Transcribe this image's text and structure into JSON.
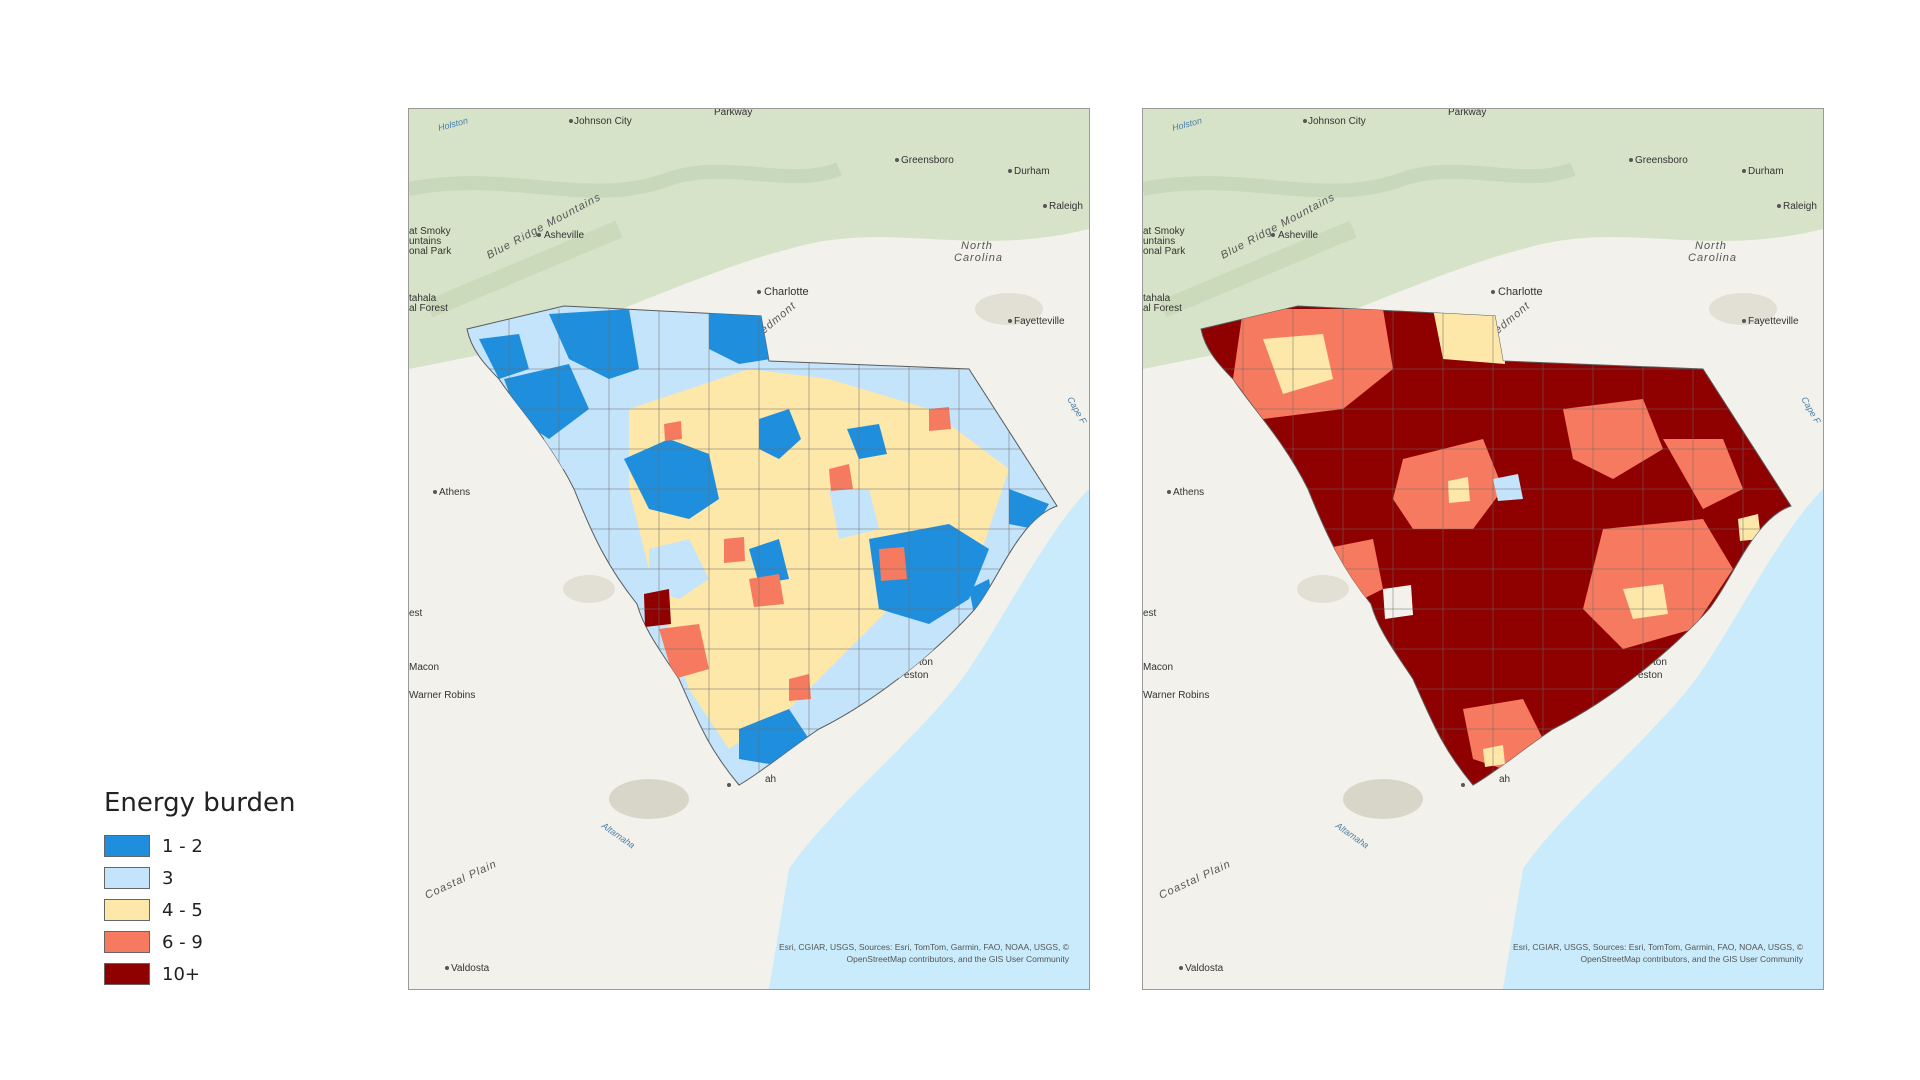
{
  "legend": {
    "title": "Energy burden",
    "items": [
      {
        "label": "1 - 2",
        "color": "#1f8fdd"
      },
      {
        "label": "3",
        "color": "#c4e4fb"
      },
      {
        "label": "4 - 5",
        "color": "#fde7a9"
      },
      {
        "label": "6 - 9",
        "color": "#f67a5f"
      },
      {
        "label": "10+",
        "color": "#8f0000"
      }
    ]
  },
  "basemap": {
    "places": {
      "johnson_city": "Johnson City",
      "parkway": "Parkway",
      "greensboro": "Greensboro",
      "durham": "Durham",
      "raleigh": "Raleigh",
      "asheville": "Asheville",
      "great_smoky_1": "at Smoky",
      "great_smoky_2": "untains",
      "great_smoky_3": "onal Park",
      "nantahala_1": "tahala",
      "nantahala_2": "al Forest",
      "north_carolina_1": "North",
      "north_carolina_2": "Carolina",
      "charlotte": "Charlotte",
      "piedmont": "edmont",
      "fayetteville": "Fayetteville",
      "athens": "Athens",
      "est": "est",
      "macon": "Macon",
      "warner_robins": "Warner Robins",
      "charleston_1": "ton",
      "charleston_2": "eston",
      "savannah": "ah",
      "valdosta": "Valdosta",
      "blue_ridge": "Blue Ridge Mountains",
      "coastal_plain": "Coastal Plain",
      "holston": "Holston",
      "altamaha": "Altamaha",
      "cape_fear": "Cape F"
    },
    "attribution_1": "Esri, CGIAR, USGS, Sources: Esri, TomTom, Garmin, FAO, NOAA, USGS, ©",
    "attribution_2": "OpenStreetMap contributors, and the GIS User Community",
    "colors": {
      "land": "#f2f1ec",
      "mountains": "#d6e3c8",
      "water": "#c9ebfb",
      "border": "#5a5a5a"
    }
  }
}
